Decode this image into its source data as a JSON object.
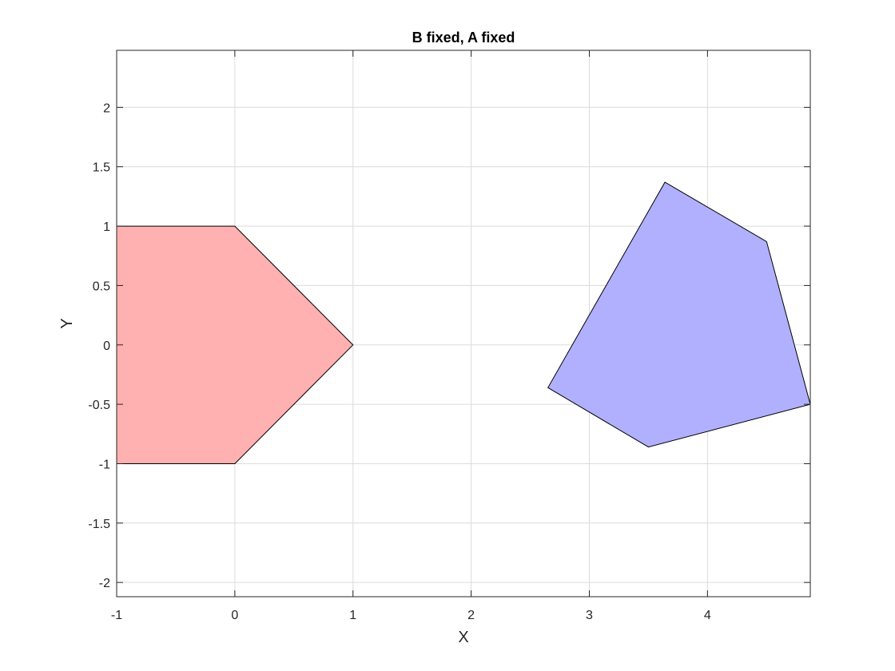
{
  "chart_data": {
    "type": "polygon",
    "title": "B fixed, A fixed",
    "xlabel": "X",
    "ylabel": "Y",
    "xlim": [
      -1,
      4.87
    ],
    "ylim": [
      -2.12,
      2.48
    ],
    "xticks": [
      -1,
      0,
      1,
      2,
      3,
      4
    ],
    "yticks": [
      -2,
      -1.5,
      -1,
      -0.5,
      0,
      0.5,
      1,
      1.5,
      2
    ],
    "xtick_labels": [
      "-1",
      "0",
      "1",
      "2",
      "3",
      "4"
    ],
    "ytick_labels": [
      "-2",
      "-1.5",
      "-1",
      "-0.5",
      "0",
      "0.5",
      "1",
      "1.5",
      "2"
    ],
    "grid": true,
    "series": [
      {
        "color": "#ffb0b0",
        "vertices": [
          [
            -1,
            1
          ],
          [
            0,
            1
          ],
          [
            1,
            0
          ],
          [
            0,
            -1
          ],
          [
            -1,
            -1
          ]
        ]
      },
      {
        "color": "#b0b0ff",
        "vertices": [
          [
            3.64,
            1.37
          ],
          [
            4.5,
            0.87
          ],
          [
            4.87,
            -0.5
          ],
          [
            3.5,
            -0.86
          ],
          [
            2.65,
            -0.36
          ]
        ]
      }
    ]
  }
}
